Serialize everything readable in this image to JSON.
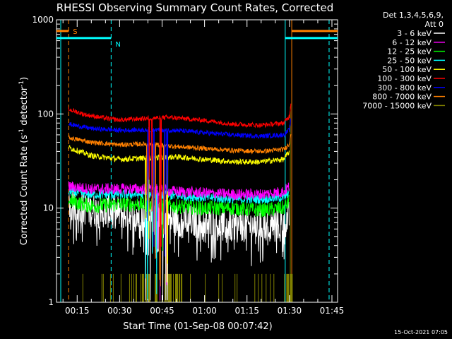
{
  "chart_data": {
    "type": "line",
    "title": "RHESSI Observing Summary Count Rates, Corrected",
    "xlabel": "Start Time (01-Sep-08 00:07:42)",
    "ylabel_main": "Corrected Count Rate (s",
    "ylabel_sup1": "-1",
    "ylabel_mid": " detector",
    "ylabel_sup2": "-1",
    "ylabel_end": ")",
    "y_scale": "log",
    "ylim": [
      1,
      1000
    ],
    "xlim_minutes": [
      7.7,
      107
    ],
    "x_ticks": [
      {
        "label": "00:15",
        "min": 15
      },
      {
        "label": "00:30",
        "min": 30
      },
      {
        "label": "00:45",
        "min": 45
      },
      {
        "label": "01:00",
        "min": 60
      },
      {
        "label": "01:15",
        "min": 75
      },
      {
        "label": "01:30",
        "min": 90
      },
      {
        "label": "01:45",
        "min": 105
      }
    ],
    "y_ticks": [
      {
        "label": "1",
        "value": 1
      },
      {
        "label": "10",
        "value": 10
      },
      {
        "label": "100",
        "value": 100
      },
      {
        "label": "1000",
        "value": 1000
      }
    ],
    "legend": {
      "header1": "Det 1,3,4,5,6,9,",
      "header2": "Att 0",
      "placement": "right"
    },
    "series": [
      {
        "name": "3 - 6 keV",
        "color": "#ffffff",
        "start": 12,
        "end": 90,
        "levels": [
          [
            12,
            11
          ],
          [
            20,
            9.5
          ],
          [
            30,
            9
          ],
          [
            40,
            8
          ],
          [
            50,
            7.5
          ],
          [
            60,
            7
          ],
          [
            70,
            6.5
          ],
          [
            80,
            6.5
          ],
          [
            88,
            7
          ],
          [
            90,
            8
          ]
        ],
        "noise": 0.18
      },
      {
        "name": "6 - 12 keV",
        "color": "#ff00ff",
        "start": 12,
        "end": 90,
        "levels": [
          [
            12,
            17
          ],
          [
            20,
            16
          ],
          [
            30,
            16
          ],
          [
            40,
            16
          ],
          [
            50,
            15
          ],
          [
            60,
            14.5
          ],
          [
            70,
            14
          ],
          [
            80,
            14
          ],
          [
            88,
            15
          ],
          [
            90,
            17
          ]
        ],
        "noise": 0.06
      },
      {
        "name": "12 - 25 keV",
        "color": "#00ff00",
        "start": 12,
        "end": 90,
        "levels": [
          [
            12,
            12
          ],
          [
            20,
            10.5
          ],
          [
            30,
            11
          ],
          [
            40,
            11
          ],
          [
            50,
            10.5
          ],
          [
            60,
            10
          ],
          [
            70,
            10
          ],
          [
            80,
            9.5
          ],
          [
            88,
            10
          ],
          [
            90,
            12
          ]
        ],
        "noise": 0.08
      },
      {
        "name": "25 - 50 keV",
        "color": "#00ffff",
        "start": 12,
        "end": 90,
        "levels": [
          [
            12,
            15
          ],
          [
            20,
            14
          ],
          [
            30,
            14
          ],
          [
            40,
            14
          ],
          [
            50,
            13.5
          ],
          [
            60,
            13
          ],
          [
            70,
            12.5
          ],
          [
            80,
            12.5
          ],
          [
            88,
            13
          ],
          [
            90,
            15
          ]
        ],
        "noise": 0.05
      },
      {
        "name": "50 - 100 keV",
        "color": "#ffff00",
        "start": 12,
        "end": 90,
        "levels": [
          [
            12,
            44
          ],
          [
            20,
            36
          ],
          [
            30,
            33
          ],
          [
            40,
            34
          ],
          [
            50,
            35
          ],
          [
            60,
            33
          ],
          [
            70,
            31
          ],
          [
            80,
            31
          ],
          [
            88,
            33
          ],
          [
            90,
            40
          ]
        ],
        "noise": 0.03
      },
      {
        "name": "100 - 300 keV",
        "color": "#ff0000",
        "start": 12,
        "end": 90.5,
        "levels": [
          [
            12,
            112
          ],
          [
            18,
            98
          ],
          [
            25,
            90
          ],
          [
            30,
            86
          ],
          [
            40,
            90
          ],
          [
            48,
            92
          ],
          [
            55,
            88
          ],
          [
            62,
            84
          ],
          [
            70,
            78
          ],
          [
            80,
            76
          ],
          [
            88,
            80
          ],
          [
            90,
            95
          ],
          [
            90.5,
            130
          ]
        ],
        "noise": 0.025
      },
      {
        "name": "300 - 800 keV",
        "color": "#0000ff",
        "start": 12,
        "end": 90.5,
        "levels": [
          [
            12,
            78
          ],
          [
            20,
            70
          ],
          [
            30,
            67
          ],
          [
            40,
            68
          ],
          [
            50,
            67
          ],
          [
            60,
            63
          ],
          [
            70,
            60
          ],
          [
            80,
            58
          ],
          [
            88,
            60
          ],
          [
            90,
            68
          ],
          [
            90.5,
            90
          ]
        ],
        "noise": 0.025
      },
      {
        "name": "800 - 7000 keV",
        "color": "#ff8000",
        "start": 12,
        "end": 90.5,
        "levels": [
          [
            12,
            56
          ],
          [
            20,
            50
          ],
          [
            30,
            47
          ],
          [
            40,
            48
          ],
          [
            50,
            45
          ],
          [
            60,
            43
          ],
          [
            70,
            41
          ],
          [
            80,
            40
          ],
          [
            88,
            42
          ],
          [
            90,
            48
          ],
          [
            90.5,
            65
          ]
        ],
        "noise": 0.025
      },
      {
        "name": "7000 - 15000 keV",
        "color": "#808000",
        "start": 12,
        "end": 92,
        "levels": [
          [
            12,
            1.5
          ],
          [
            90,
            1.5
          ]
        ],
        "noise": 0
      }
    ],
    "attenuator_label": "S",
    "attenuator_color": "#ff8000",
    "night_label": "N",
    "night_color": "#00ffff",
    "timestamp": "15-Oct-2021 07:05"
  }
}
